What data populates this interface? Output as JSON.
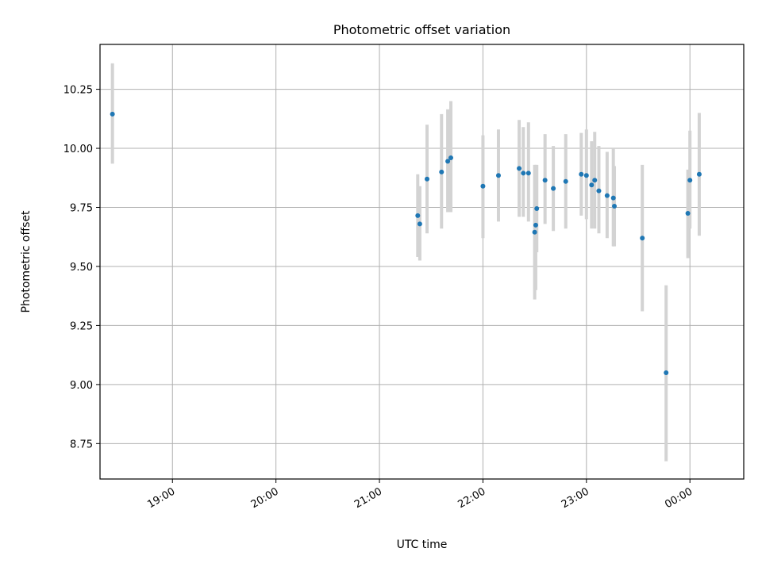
{
  "chart_data": {
    "type": "scatter",
    "title": "Photometric offset variation",
    "xlabel": "UTC time",
    "ylabel": "Photometric offset",
    "grid": true,
    "legend": "none",
    "xlim": [
      -0.7,
      5.52
    ],
    "ylim": [
      8.6,
      10.44
    ],
    "x_unit": "hours after 19:00 UTC",
    "x_ticks": [
      {
        "value": 0,
        "label": "19:00"
      },
      {
        "value": 1,
        "label": "20:00"
      },
      {
        "value": 2,
        "label": "21:00"
      },
      {
        "value": 3,
        "label": "22:00"
      },
      {
        "value": 4,
        "label": "23:00"
      },
      {
        "value": 5,
        "label": "00:00"
      }
    ],
    "y_ticks": [
      {
        "value": 8.75,
        "label": "8.75"
      },
      {
        "value": 9.0,
        "label": "9.00"
      },
      {
        "value": 9.25,
        "label": "9.25"
      },
      {
        "value": 9.5,
        "label": "9.50"
      },
      {
        "value": 9.75,
        "label": "9.75"
      },
      {
        "value": 10.0,
        "label": "10.00"
      },
      {
        "value": 10.25,
        "label": "10.25"
      }
    ],
    "series": [
      {
        "name": "Photometric offset",
        "color": "#1f77b4",
        "errorbar_color": "#d3d3d3",
        "points": [
          {
            "x": -0.58,
            "y": 10.145,
            "lo": 9.935,
            "hi": 10.36
          },
          {
            "x": 2.37,
            "y": 9.715,
            "lo": 9.54,
            "hi": 9.89
          },
          {
            "x": 2.39,
            "y": 9.68,
            "lo": 9.525,
            "hi": 9.84
          },
          {
            "x": 2.46,
            "y": 9.87,
            "lo": 9.64,
            "hi": 10.1
          },
          {
            "x": 2.6,
            "y": 9.9,
            "lo": 9.66,
            "hi": 10.145
          },
          {
            "x": 2.66,
            "y": 9.945,
            "lo": 9.73,
            "hi": 10.165
          },
          {
            "x": 2.69,
            "y": 9.96,
            "lo": 9.73,
            "hi": 10.2
          },
          {
            "x": 3.0,
            "y": 9.84,
            "lo": 9.62,
            "hi": 10.055
          },
          {
            "x": 3.15,
            "y": 9.885,
            "lo": 9.69,
            "hi": 10.08
          },
          {
            "x": 3.35,
            "y": 9.915,
            "lo": 9.71,
            "hi": 10.12
          },
          {
            "x": 3.39,
            "y": 9.895,
            "lo": 9.71,
            "hi": 10.09
          },
          {
            "x": 3.44,
            "y": 9.895,
            "lo": 9.69,
            "hi": 10.11
          },
          {
            "x": 3.5,
            "y": 9.645,
            "lo": 9.36,
            "hi": 9.93
          },
          {
            "x": 3.51,
            "y": 9.675,
            "lo": 9.4,
            "hi": 9.93
          },
          {
            "x": 3.52,
            "y": 9.745,
            "lo": 9.56,
            "hi": 9.93
          },
          {
            "x": 3.6,
            "y": 9.865,
            "lo": 9.68,
            "hi": 10.06
          },
          {
            "x": 3.68,
            "y": 9.83,
            "lo": 9.65,
            "hi": 10.01
          },
          {
            "x": 3.8,
            "y": 9.86,
            "lo": 9.66,
            "hi": 10.06
          },
          {
            "x": 3.95,
            "y": 9.89,
            "lo": 9.715,
            "hi": 10.065
          },
          {
            "x": 4.0,
            "y": 9.885,
            "lo": 9.7,
            "hi": 10.08
          },
          {
            "x": 4.05,
            "y": 9.845,
            "lo": 9.66,
            "hi": 10.03
          },
          {
            "x": 4.08,
            "y": 9.865,
            "lo": 9.66,
            "hi": 10.07
          },
          {
            "x": 4.12,
            "y": 9.82,
            "lo": 9.64,
            "hi": 10.01
          },
          {
            "x": 4.2,
            "y": 9.8,
            "lo": 9.62,
            "hi": 9.985
          },
          {
            "x": 4.26,
            "y": 9.79,
            "lo": 9.585,
            "hi": 10.0
          },
          {
            "x": 4.27,
            "y": 9.755,
            "lo": 9.585,
            "hi": 9.925
          },
          {
            "x": 4.54,
            "y": 9.62,
            "lo": 9.31,
            "hi": 9.93
          },
          {
            "x": 4.77,
            "y": 9.05,
            "lo": 8.675,
            "hi": 9.42
          },
          {
            "x": 4.98,
            "y": 9.725,
            "lo": 9.535,
            "hi": 9.91
          },
          {
            "x": 5.0,
            "y": 9.865,
            "lo": 9.66,
            "hi": 10.075
          },
          {
            "x": 5.09,
            "y": 9.89,
            "lo": 9.63,
            "hi": 10.15
          }
        ]
      }
    ]
  }
}
